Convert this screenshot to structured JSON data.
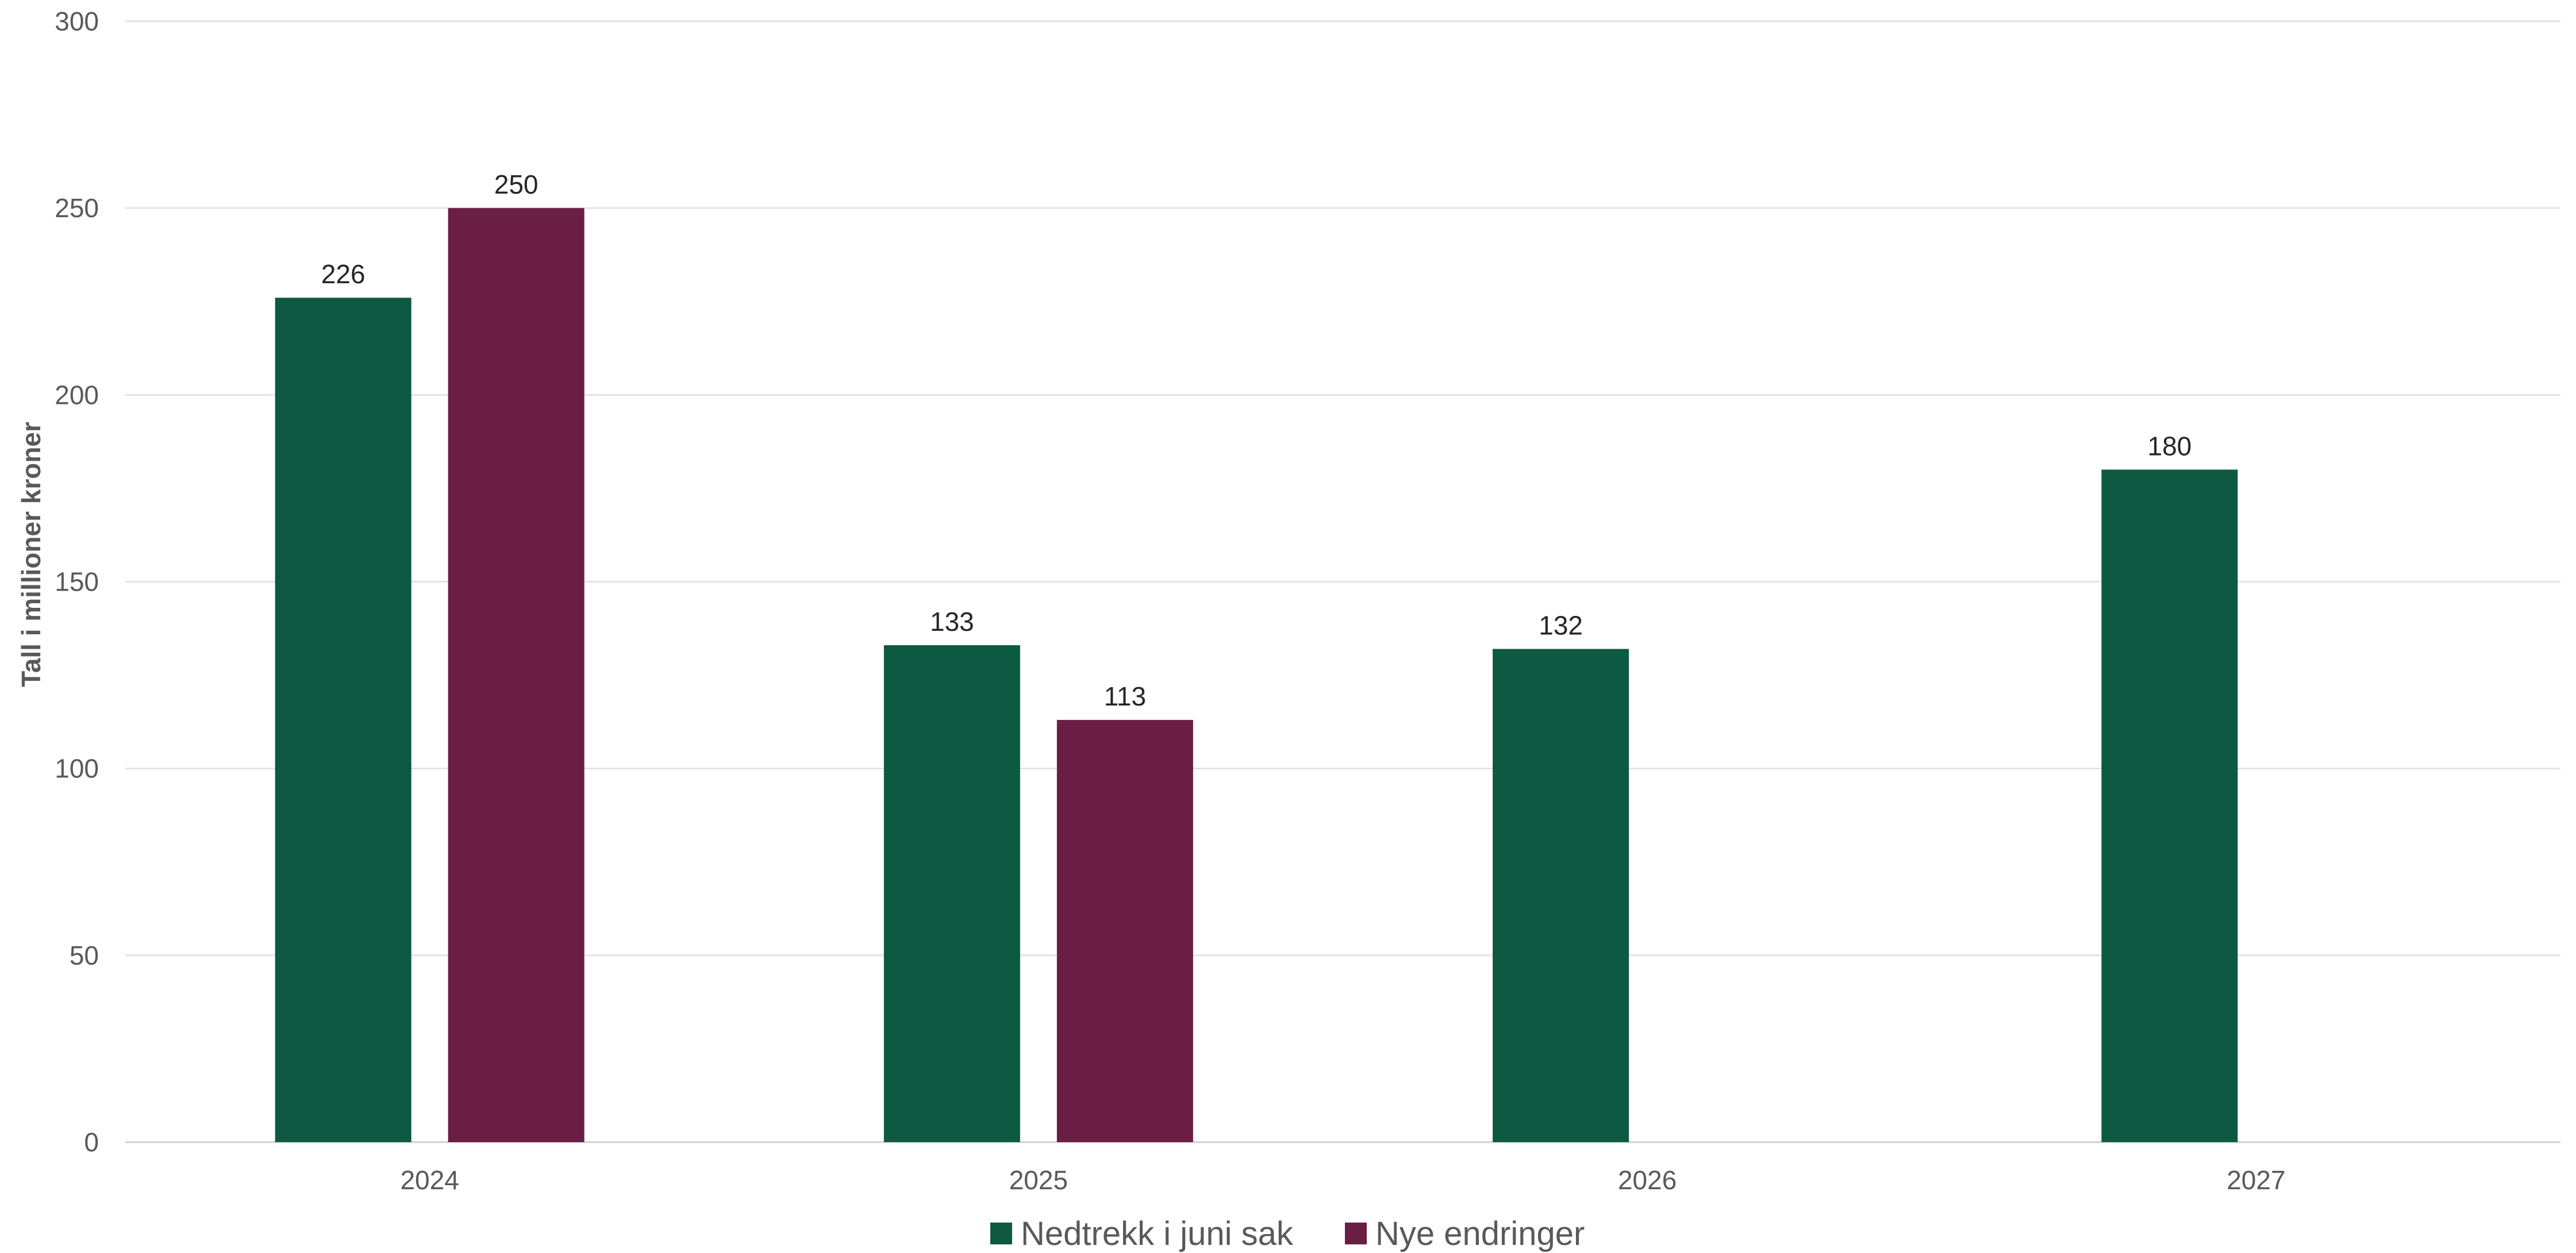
{
  "chart_data": {
    "type": "bar",
    "categories": [
      "2024",
      "2025",
      "2026",
      "2027"
    ],
    "series": [
      {
        "name": "Nedtrekk i juni sak",
        "color": "#0e5942",
        "values": [
          226,
          133,
          132,
          180
        ]
      },
      {
        "name": "Nye endringer",
        "color": "#6b1e44",
        "values": [
          250,
          113,
          null,
          null
        ]
      }
    ],
    "ylabel": "Tall i millioner kroner",
    "xlabel": "",
    "ylim": [
      0,
      300
    ],
    "yticks": [
      "0",
      "50",
      "100",
      "150",
      "200",
      "250",
      "300"
    ],
    "grid": true,
    "legend_position": "bottom",
    "data_labels": true
  }
}
